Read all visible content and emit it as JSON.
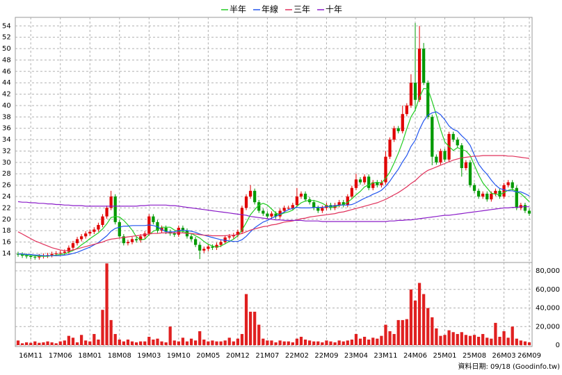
{
  "chart_data": {
    "type": "candlestick",
    "categories": [
      null,
      null,
      null,
      "16M11",
      null,
      null,
      null,
      null,
      null,
      null,
      "17M06",
      null,
      null,
      null,
      null,
      null,
      null,
      "18M01",
      null,
      null,
      null,
      null,
      null,
      null,
      "18M08",
      null,
      null,
      null,
      null,
      null,
      null,
      "19M03",
      null,
      null,
      null,
      null,
      null,
      null,
      "19M10",
      null,
      null,
      null,
      null,
      null,
      null,
      "20M05",
      null,
      null,
      null,
      null,
      null,
      null,
      "20M12",
      null,
      null,
      null,
      null,
      null,
      null,
      "21M07",
      null,
      null,
      null,
      null,
      null,
      null,
      "22M02",
      null,
      null,
      null,
      null,
      null,
      null,
      "22M09",
      null,
      null,
      null,
      null,
      null,
      null,
      "23M04",
      null,
      null,
      null,
      null,
      null,
      null,
      "23M11",
      null,
      null,
      null,
      null,
      null,
      null,
      "24M06",
      null,
      null,
      null,
      null,
      null,
      null,
      "25M01",
      null,
      null,
      null,
      null,
      null,
      null,
      "25M08",
      null,
      null,
      null,
      null,
      null,
      null,
      "26M03",
      null,
      null,
      null,
      null,
      null,
      "26M09"
    ],
    "open": [
      13.9,
      13.8,
      13.6,
      13.5,
      13.4,
      13.3,
      13.5,
      13.6,
      13.7,
      13.9,
      14.0,
      14.1,
      14.3,
      15.0,
      15.8,
      16.5,
      17.0,
      17.5,
      17.8,
      18.2,
      19.0,
      20.5,
      22.0,
      24.0,
      19.5,
      17.0,
      15.8,
      16.0,
      16.5,
      16.3,
      17.0,
      17.5,
      20.5,
      19.5,
      18.0,
      18.5,
      17.8,
      17.5,
      17.3,
      18.5,
      18.0,
      17.0,
      16.5,
      15.5,
      14.5,
      14.8,
      15.2,
      15.0,
      15.5,
      16.0,
      16.8,
      17.0,
      17.2,
      17.8,
      22.0,
      24.0,
      25.0,
      23.0,
      21.5,
      21.0,
      20.5,
      21.0,
      20.5,
      21.5,
      22.0,
      22.0,
      22.5,
      24.0,
      24.5,
      23.5,
      23.0,
      22.0,
      21.5,
      22.0,
      22.5,
      22.0,
      22.5,
      23.0,
      22.5,
      24.0,
      25.5,
      27.0,
      26.5,
      27.5,
      25.5,
      26.5,
      26.0,
      26.5,
      31.0,
      34.0,
      36.0,
      35.5,
      38.5,
      40.0,
      44.0,
      41.0,
      50.0,
      44.0,
      38.0,
      31.0,
      30.0,
      32.0,
      30.5,
      35.0,
      34.0,
      33.0,
      29.0,
      30.0,
      26.0,
      25.0,
      24.0,
      24.5,
      23.5,
      24.5,
      25.0,
      24.0,
      26.0,
      26.5,
      25.5,
      22.0,
      22.5,
      21.5
    ],
    "high": [
      14.3,
      14.2,
      14.0,
      13.9,
      13.8,
      13.9,
      14.0,
      14.1,
      14.3,
      14.4,
      14.5,
      14.7,
      15.4,
      16.2,
      16.9,
      17.4,
      17.9,
      18.2,
      18.6,
      19.4,
      20.9,
      22.4,
      25.0,
      24.4,
      19.9,
      17.4,
      16.4,
      16.9,
      16.9,
      17.4,
      17.9,
      20.9,
      20.9,
      19.9,
      18.9,
      18.9,
      18.2,
      17.9,
      18.9,
      18.9,
      18.4,
      17.4,
      16.9,
      15.9,
      15.2,
      15.6,
      15.6,
      15.9,
      16.4,
      17.2,
      17.4,
      17.6,
      18.2,
      22.4,
      24.4,
      26.0,
      25.4,
      23.4,
      21.9,
      21.4,
      21.4,
      21.4,
      21.9,
      22.4,
      22.4,
      22.9,
      25.5,
      24.9,
      24.9,
      23.9,
      23.4,
      22.4,
      22.4,
      22.9,
      22.9,
      22.9,
      23.4,
      23.4,
      24.4,
      25.9,
      28.0,
      27.4,
      27.9,
      27.9,
      26.9,
      26.9,
      26.9,
      32.0,
      34.4,
      36.4,
      36.4,
      40.0,
      40.4,
      45.5,
      54.5,
      54.0,
      51.0,
      44.4,
      38.4,
      31.4,
      32.4,
      32.4,
      35.4,
      35.4,
      34.4,
      33.4,
      30.4,
      30.4,
      26.4,
      25.4,
      24.9,
      24.9,
      24.9,
      25.4,
      25.4,
      26.4,
      26.9,
      26.9,
      25.9,
      22.9,
      22.9,
      21.9
    ],
    "low": [
      13.4,
      13.2,
      13.1,
      13.0,
      12.9,
      12.9,
      13.1,
      13.2,
      13.3,
      13.5,
      13.6,
      13.7,
      13.9,
      14.6,
      15.4,
      16.1,
      16.6,
      17.1,
      17.4,
      17.8,
      18.6,
      20.1,
      21.6,
      19.1,
      16.6,
      15.4,
      15.4,
      15.6,
      15.9,
      15.9,
      16.6,
      17.1,
      19.1,
      17.6,
      17.6,
      17.4,
      17.1,
      16.9,
      16.9,
      17.6,
      16.6,
      16.1,
      15.1,
      13.0,
      14.1,
      14.4,
      14.6,
      14.6,
      15.1,
      15.6,
      16.4,
      16.6,
      16.8,
      17.4,
      21.6,
      23.6,
      22.6,
      21.1,
      20.6,
      20.1,
      20.1,
      20.1,
      20.1,
      21.1,
      21.6,
      21.6,
      22.1,
      23.6,
      23.1,
      22.6,
      21.6,
      21.1,
      21.1,
      21.6,
      21.6,
      21.6,
      22.1,
      22.1,
      22.1,
      23.6,
      25.1,
      26.1,
      26.1,
      25.1,
      25.1,
      25.6,
      25.6,
      26.1,
      30.6,
      33.6,
      35.1,
      35.1,
      38.1,
      39.6,
      39.0,
      40.6,
      43.6,
      37.6,
      29.5,
      29.6,
      29.6,
      30.1,
      30.1,
      33.6,
      32.6,
      27.5,
      28.6,
      25.6,
      24.6,
      23.6,
      23.6,
      23.1,
      23.1,
      24.1,
      23.6,
      23.6,
      25.6,
      25.1,
      21.6,
      21.6,
      21.1,
      20.6
    ],
    "close": [
      13.8,
      13.6,
      13.5,
      13.4,
      13.3,
      13.5,
      13.6,
      13.7,
      13.9,
      14.0,
      14.1,
      14.3,
      15.0,
      15.8,
      16.5,
      17.0,
      17.5,
      17.8,
      18.2,
      19.0,
      20.5,
      22.0,
      24.0,
      19.5,
      17.0,
      15.8,
      16.0,
      16.5,
      16.3,
      17.0,
      17.5,
      20.5,
      19.5,
      18.0,
      18.5,
      17.8,
      17.5,
      17.3,
      18.5,
      18.0,
      17.0,
      16.5,
      15.5,
      14.5,
      14.8,
      15.2,
      15.0,
      15.5,
      16.0,
      16.8,
      17.0,
      17.2,
      17.8,
      22.0,
      24.0,
      25.0,
      23.0,
      21.5,
      21.0,
      20.5,
      21.0,
      20.5,
      21.5,
      22.0,
      22.0,
      22.5,
      24.0,
      24.5,
      23.5,
      23.0,
      22.0,
      21.5,
      22.0,
      22.5,
      22.0,
      22.5,
      23.0,
      22.5,
      24.0,
      25.5,
      27.0,
      26.5,
      27.5,
      25.5,
      26.5,
      26.0,
      26.5,
      31.0,
      34.0,
      36.0,
      35.5,
      38.5,
      40.0,
      44.0,
      41.0,
      50.0,
      44.0,
      38.0,
      31.0,
      30.0,
      32.0,
      30.5,
      35.0,
      34.0,
      33.0,
      29.0,
      30.0,
      26.0,
      25.0,
      24.0,
      24.5,
      23.5,
      24.5,
      25.0,
      24.0,
      26.0,
      26.5,
      25.5,
      22.0,
      22.5,
      21.5,
      21.0
    ],
    "up_color": "#e00000",
    "down_color": "#009900",
    "series": [
      {
        "name": "半年",
        "color": "#22cc22",
        "values": [
          13.9,
          13.8,
          13.7,
          13.6,
          13.6,
          13.5,
          13.5,
          13.5,
          13.6,
          13.7,
          13.8,
          13.9,
          14.2,
          14.5,
          14.9,
          15.5,
          16.0,
          16.6,
          17.1,
          17.6,
          18.3,
          19.2,
          20.3,
          20.5,
          20.4,
          19.8,
          19.0,
          18.1,
          16.9,
          16.4,
          16.5,
          17.3,
          17.9,
          18.2,
          18.6,
          18.6,
          18.6,
          18.1,
          17.9,
          17.9,
          17.6,
          17.5,
          17.1,
          16.7,
          16.1,
          15.6,
          15.3,
          15.1,
          15.3,
          15.7,
          16.1,
          16.5,
          17.1,
          18.1,
          19.4,
          20.8,
          21.7,
          22.5,
          22.8,
          22.5,
          21.8,
          21.1,
          20.8,
          21.1,
          21.3,
          21.6,
          22.3,
          22.9,
          23.2,
          23.3,
          23.3,
          23.1,
          22.8,
          22.4,
          22.1,
          22.2,
          22.4,
          22.6,
          23.0,
          23.6,
          24.3,
          24.9,
          25.7,
          26.0,
          26.4,
          26.5,
          26.4,
          27.2,
          28.3,
          29.9,
          31.6,
          33.6,
          35.9,
          38.0,
          39.2,
          41.5,
          43.0,
          42.9,
          40.7,
          38.3,
          35.8,
          33.6,
          32.8,
          32.1,
          32.6,
          32.3,
          32.0,
          31.2,
          29.5,
          27.8,
          26.4,
          25.5,
          24.6,
          24.4,
          24.3,
          24.7,
          25.1,
          25.3,
          24.8,
          24.5,
          23.8,
          23.1
        ]
      },
      {
        "name": "年線",
        "color": "#2255ee",
        "values": [
          13.9,
          13.9,
          13.8,
          13.8,
          13.7,
          13.7,
          13.6,
          13.6,
          13.6,
          13.6,
          13.6,
          13.7,
          13.8,
          14.0,
          14.2,
          14.5,
          14.8,
          15.1,
          15.5,
          15.9,
          16.5,
          17.1,
          17.9,
          18.4,
          18.6,
          18.8,
          18.8,
          18.9,
          18.9,
          18.9,
          18.9,
          19.0,
          18.9,
          18.7,
          18.2,
          17.8,
          17.8,
          17.8,
          18.0,
          18.1,
          18.0,
          17.9,
          17.7,
          17.4,
          17.2,
          17.0,
          16.8,
          16.6,
          16.4,
          16.3,
          16.2,
          16.1,
          16.1,
          16.4,
          17.0,
          17.8,
          18.5,
          19.0,
          19.5,
          19.8,
          20.2,
          20.5,
          20.9,
          21.3,
          21.7,
          21.9,
          22.1,
          22.0,
          22.0,
          22.0,
          22.1,
          22.1,
          22.1,
          22.2,
          22.3,
          22.4,
          22.5,
          22.5,
          22.5,
          22.6,
          22.9,
          23.3,
          23.7,
          24.0,
          24.4,
          24.7,
          25.1,
          25.8,
          26.7,
          27.8,
          28.8,
          30.1,
          31.2,
          32.8,
          33.9,
          35.8,
          37.3,
          38.3,
          38.7,
          38.9,
          38.4,
          37.5,
          36.4,
          35.8,
          35.5,
          34.7,
          34.0,
          33.0,
          31.3,
          29.7,
          28.7,
          27.9,
          26.9,
          26.0,
          25.4,
          25.2,
          25.0,
          25.0,
          24.8,
          24.8,
          24.5,
          24.1
        ]
      },
      {
        "name": "三年",
        "color": "#e0305a",
        "values": [
          17.8,
          17.4,
          17.0,
          16.6,
          16.2,
          15.9,
          15.6,
          15.3,
          15.0,
          14.8,
          14.6,
          14.5,
          14.5,
          14.6,
          14.8,
          15.0,
          15.2,
          15.4,
          15.6,
          15.8,
          16.0,
          16.3,
          16.5,
          16.6,
          16.7,
          16.8,
          16.9,
          17.0,
          17.1,
          17.2,
          17.3,
          17.4,
          17.5,
          17.5,
          17.6,
          17.6,
          17.6,
          17.6,
          17.6,
          17.6,
          17.5,
          17.5,
          17.4,
          17.3,
          17.2,
          17.2,
          17.1,
          17.1,
          17.1,
          17.1,
          17.2,
          17.2,
          17.3,
          17.5,
          17.8,
          18.1,
          18.3,
          18.5,
          18.7,
          18.8,
          19.0,
          19.1,
          19.3,
          19.5,
          19.6,
          19.7,
          19.9,
          20.1,
          20.2,
          20.4,
          20.5,
          20.6,
          20.7,
          20.8,
          20.9,
          21.0,
          21.2,
          21.3,
          21.5,
          21.7,
          21.9,
          22.1,
          22.3,
          22.5,
          22.7,
          22.9,
          23.2,
          23.5,
          23.9,
          24.3,
          24.7,
          25.2,
          25.7,
          26.3,
          26.8,
          27.5,
          28.1,
          28.6,
          28.9,
          29.2,
          29.5,
          29.8,
          30.1,
          30.4,
          30.6,
          30.8,
          30.9,
          31.0,
          31.1,
          31.1,
          31.2,
          31.2,
          31.2,
          31.2,
          31.2,
          31.2,
          31.1,
          31.1,
          31.0,
          30.9,
          30.8,
          30.7
        ]
      },
      {
        "name": "十年",
        "color": "#8a1cc8",
        "values": [
          23.1,
          23.0,
          23.0,
          22.9,
          22.9,
          22.8,
          22.8,
          22.7,
          22.7,
          22.6,
          22.6,
          22.5,
          22.5,
          22.4,
          22.4,
          22.4,
          22.3,
          22.3,
          22.3,
          22.3,
          22.3,
          22.3,
          22.3,
          22.3,
          22.3,
          22.3,
          22.3,
          22.3,
          22.3,
          22.4,
          22.4,
          22.5,
          22.5,
          22.5,
          22.5,
          22.5,
          22.4,
          22.4,
          22.3,
          22.2,
          22.1,
          22.0,
          21.9,
          21.8,
          21.7,
          21.6,
          21.5,
          21.4,
          21.3,
          21.2,
          21.1,
          21.0,
          20.9,
          20.8,
          20.7,
          20.5,
          20.4,
          20.3,
          20.2,
          20.1,
          20.0,
          19.9,
          19.9,
          19.8,
          19.8,
          19.8,
          19.8,
          19.8,
          19.7,
          19.7,
          19.7,
          19.7,
          19.6,
          19.6,
          19.6,
          19.6,
          19.6,
          19.6,
          19.6,
          19.6,
          19.6,
          19.6,
          19.6,
          19.6,
          19.6,
          19.6,
          19.6,
          19.6,
          19.7,
          19.7,
          19.8,
          19.8,
          19.9,
          19.9,
          20.0,
          20.1,
          20.2,
          20.3,
          20.4,
          20.5,
          20.6,
          20.7,
          20.7,
          20.8,
          20.9,
          21.0,
          21.1,
          21.2,
          21.3,
          21.4,
          21.5,
          21.6,
          21.7,
          21.8,
          21.9,
          22.0,
          22.0,
          22.1,
          22.1,
          22.2,
          22.2,
          22.2
        ]
      }
    ],
    "ylim": [
      12.4,
      55.5
    ],
    "yticks": [
      14,
      16,
      18,
      20,
      22,
      24,
      26,
      28,
      30,
      32,
      34,
      36,
      38,
      40,
      42,
      44,
      46,
      48,
      50,
      52,
      54
    ],
    "grid": true,
    "legend": "top",
    "volume": {
      "color": "#e02020",
      "values": [
        5000,
        2000,
        3000,
        2500,
        4000,
        2500,
        3000,
        4000,
        3000,
        2000,
        4000,
        5000,
        10000,
        8000,
        3000,
        11000,
        5000,
        4000,
        12000,
        6000,
        38000,
        88000,
        27000,
        12000,
        6000,
        4000,
        6000,
        4000,
        3000,
        4000,
        4000,
        9000,
        6000,
        7000,
        4000,
        3000,
        20000,
        5000,
        4000,
        8000,
        4000,
        7000,
        5000,
        15000,
        6000,
        4000,
        5000,
        4000,
        4000,
        5000,
        8000,
        4000,
        7000,
        12000,
        55000,
        36000,
        36000,
        22000,
        7000,
        5000,
        5000,
        3000,
        5000,
        4000,
        4000,
        3000,
        7000,
        9000,
        6000,
        5000,
        4000,
        4000,
        3000,
        5000,
        4000,
        3000,
        5000,
        4000,
        5000,
        6000,
        12000,
        7000,
        9000,
        6000,
        8000,
        7000,
        10000,
        22000,
        15000,
        12000,
        27000,
        27000,
        28000,
        60000,
        48000,
        67000,
        55000,
        40000,
        30000,
        18000,
        10000,
        11000,
        16000,
        14000,
        12000,
        14000,
        11000,
        10000,
        11000,
        9000,
        12000,
        8000,
        7000,
        24000,
        9000,
        15000,
        8000,
        20000,
        7000,
        5000,
        4000,
        3000
      ],
      "ylim": [
        0,
        89000
      ],
      "yticks": [
        0,
        {
          "value": 20000,
          "label": "20,000"
        },
        {
          "value": 40000,
          "label": "40,000"
        },
        {
          "value": 60000,
          "label": "60,000"
        },
        {
          "value": 80000,
          "label": "80,000"
        }
      ]
    },
    "note": "資料日期: 09/18 (Goodinfo.tw)"
  }
}
